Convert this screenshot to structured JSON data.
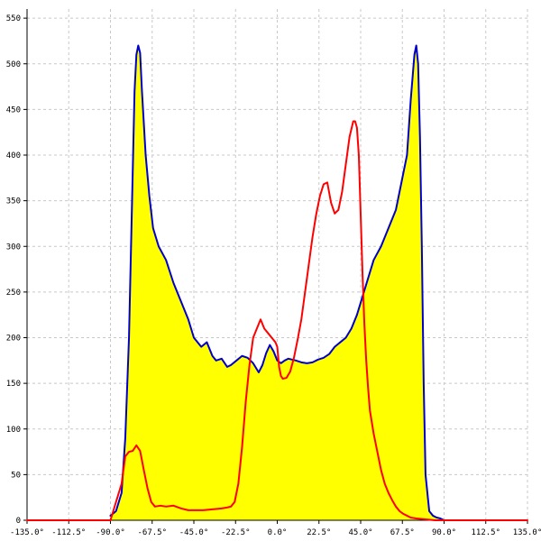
{
  "chart_data": {
    "type": "area",
    "title": "",
    "xlabel": "",
    "ylabel": "",
    "xlim": [
      -135,
      135
    ],
    "ylim": [
      0,
      560
    ],
    "grid": true,
    "legend": "none",
    "x_ticks": [
      {
        "value": -135,
        "label": "-135.0°"
      },
      {
        "value": -112.5,
        "label": "-112.5°"
      },
      {
        "value": -90,
        "label": "-90.0°"
      },
      {
        "value": -67.5,
        "label": "-67.5°"
      },
      {
        "value": -45,
        "label": "-45.0°"
      },
      {
        "value": -22.5,
        "label": "-22.5°"
      },
      {
        "value": 0,
        "label": "0.0°"
      },
      {
        "value": 22.5,
        "label": "22.5°"
      },
      {
        "value": 45,
        "label": "45.0°"
      },
      {
        "value": 67.5,
        "label": "67.5°"
      },
      {
        "value": 90,
        "label": "90.0°"
      },
      {
        "value": 112.5,
        "label": "112.5°"
      },
      {
        "value": 135,
        "label": "135.0°"
      }
    ],
    "y_ticks": [
      {
        "value": 0,
        "label": "0"
      },
      {
        "value": 50,
        "label": "50"
      },
      {
        "value": 100,
        "label": "100"
      },
      {
        "value": 150,
        "label": "150"
      },
      {
        "value": 200,
        "label": "200"
      },
      {
        "value": 250,
        "label": "250"
      },
      {
        "value": 300,
        "label": "300"
      },
      {
        "value": 350,
        "label": "350"
      },
      {
        "value": 400,
        "label": "400"
      },
      {
        "value": 450,
        "label": "450"
      },
      {
        "value": 500,
        "label": "500"
      },
      {
        "value": 550,
        "label": "550"
      }
    ],
    "series": [
      {
        "color": "#0000cc",
        "fill": "#ffff00",
        "x": [
          -90,
          -87,
          -84,
          -82,
          -80,
          -78,
          -77,
          -76,
          -75,
          -74,
          -73,
          -71,
          -69,
          -67,
          -64,
          -60,
          -56,
          -52,
          -48,
          -45,
          -41,
          -38,
          -35,
          -33,
          -30,
          -27,
          -25,
          -22,
          -19,
          -16,
          -13,
          -10,
          -8,
          -6,
          -4,
          -2,
          0,
          2,
          4,
          6,
          8,
          10,
          13,
          16,
          19,
          22,
          25,
          28,
          31,
          34,
          37,
          40,
          43,
          46,
          49,
          52,
          56,
          60,
          64,
          67,
          70,
          72,
          74,
          75,
          76,
          77,
          78,
          79,
          80,
          82,
          84,
          86,
          88,
          90
        ],
        "y": [
          5,
          10,
          30,
          90,
          200,
          380,
          470,
          510,
          520,
          512,
          470,
          400,
          355,
          320,
          300,
          285,
          260,
          240,
          220,
          200,
          190,
          195,
          180,
          175,
          177,
          168,
          170,
          175,
          180,
          178,
          172,
          162,
          170,
          183,
          192,
          185,
          175,
          172,
          175,
          177,
          176,
          175,
          173,
          172,
          173,
          176,
          178,
          182,
          190,
          195,
          200,
          210,
          225,
          245,
          265,
          285,
          300,
          320,
          340,
          370,
          400,
          460,
          510,
          520,
          500,
          420,
          300,
          150,
          50,
          10,
          5,
          3,
          2,
          0
        ]
      },
      {
        "color": "#ff0000",
        "x": [
          -135,
          -90,
          -87,
          -84,
          -82,
          -80,
          -78,
          -76,
          -74,
          -72,
          -70,
          -68,
          -66,
          -63,
          -60,
          -56,
          -52,
          -48,
          -44,
          -40,
          -35,
          -30,
          -27,
          -25,
          -23,
          -21,
          -19,
          -17,
          -15,
          -13,
          -11,
          -9,
          -7,
          -5,
          -3,
          -1,
          0,
          1,
          2,
          3,
          5,
          7,
          9,
          11,
          13,
          15,
          17,
          19,
          21,
          23,
          25,
          27,
          29,
          31,
          33,
          35,
          37,
          39,
          41,
          42,
          43,
          44,
          45,
          46,
          47,
          48,
          49,
          50,
          52,
          54,
          56,
          58,
          60,
          62,
          64,
          66,
          68,
          70,
          72,
          75,
          80,
          85,
          90,
          135
        ],
        "y": [
          0,
          0,
          20,
          40,
          70,
          75,
          76,
          82,
          76,
          55,
          35,
          20,
          15,
          16,
          15,
          16,
          13,
          11,
          11,
          11,
          12,
          13,
          14,
          15,
          20,
          40,
          80,
          130,
          170,
          200,
          210,
          220,
          210,
          205,
          200,
          195,
          190,
          168,
          158,
          155,
          156,
          163,
          178,
          198,
          220,
          250,
          280,
          310,
          335,
          355,
          368,
          370,
          348,
          336,
          340,
          360,
          390,
          420,
          437,
          437,
          430,
          400,
          335,
          270,
          215,
          175,
          145,
          120,
          95,
          75,
          55,
          40,
          30,
          22,
          15,
          10,
          7,
          5,
          3,
          2,
          1,
          0,
          0,
          0
        ]
      }
    ]
  }
}
